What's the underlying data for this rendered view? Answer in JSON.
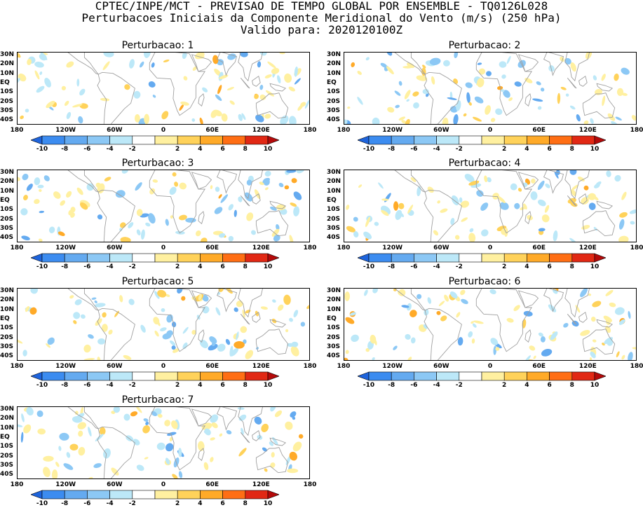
{
  "header": {
    "line1": "CPTEC/INPE/MCT - PREVISAO DE TEMPO GLOBAL POR ENSEMBLE - TQ0126L028",
    "line2": "Perturbacoes Iniciais da Componente Meridional do Vento (m/s) (250 hPa)",
    "line3": "Valido para: 2020120100Z"
  },
  "panels": [
    {
      "title": "Perturbacao: 1"
    },
    {
      "title": "Perturbacao: 2"
    },
    {
      "title": "Perturbacao: 3"
    },
    {
      "title": "Perturbacao: 4"
    },
    {
      "title": "Perturbacao: 5"
    },
    {
      "title": "Perturbacao: 6"
    },
    {
      "title": "Perturbacao: 7"
    }
  ],
  "lat_labels": [
    "30N",
    "20N",
    "10N",
    "EQ",
    "10S",
    "20S",
    "30S",
    "40S"
  ],
  "lon_labels": [
    "180",
    "120W",
    "60W",
    "0",
    "60E",
    "120E",
    "180"
  ],
  "colorbar": {
    "labels": [
      "-10",
      "-8",
      "-6",
      "-4",
      "-2",
      "2",
      "4",
      "6",
      "8",
      "10"
    ],
    "colors": [
      "#1e64dc",
      "#3c8cf0",
      "#64aaf0",
      "#8cc8f5",
      "#bce8f8",
      "#ffffff",
      "#fff0a0",
      "#ffd25a",
      "#ffaa28",
      "#ff6e14",
      "#e12814",
      "#b40a0a"
    ]
  }
}
